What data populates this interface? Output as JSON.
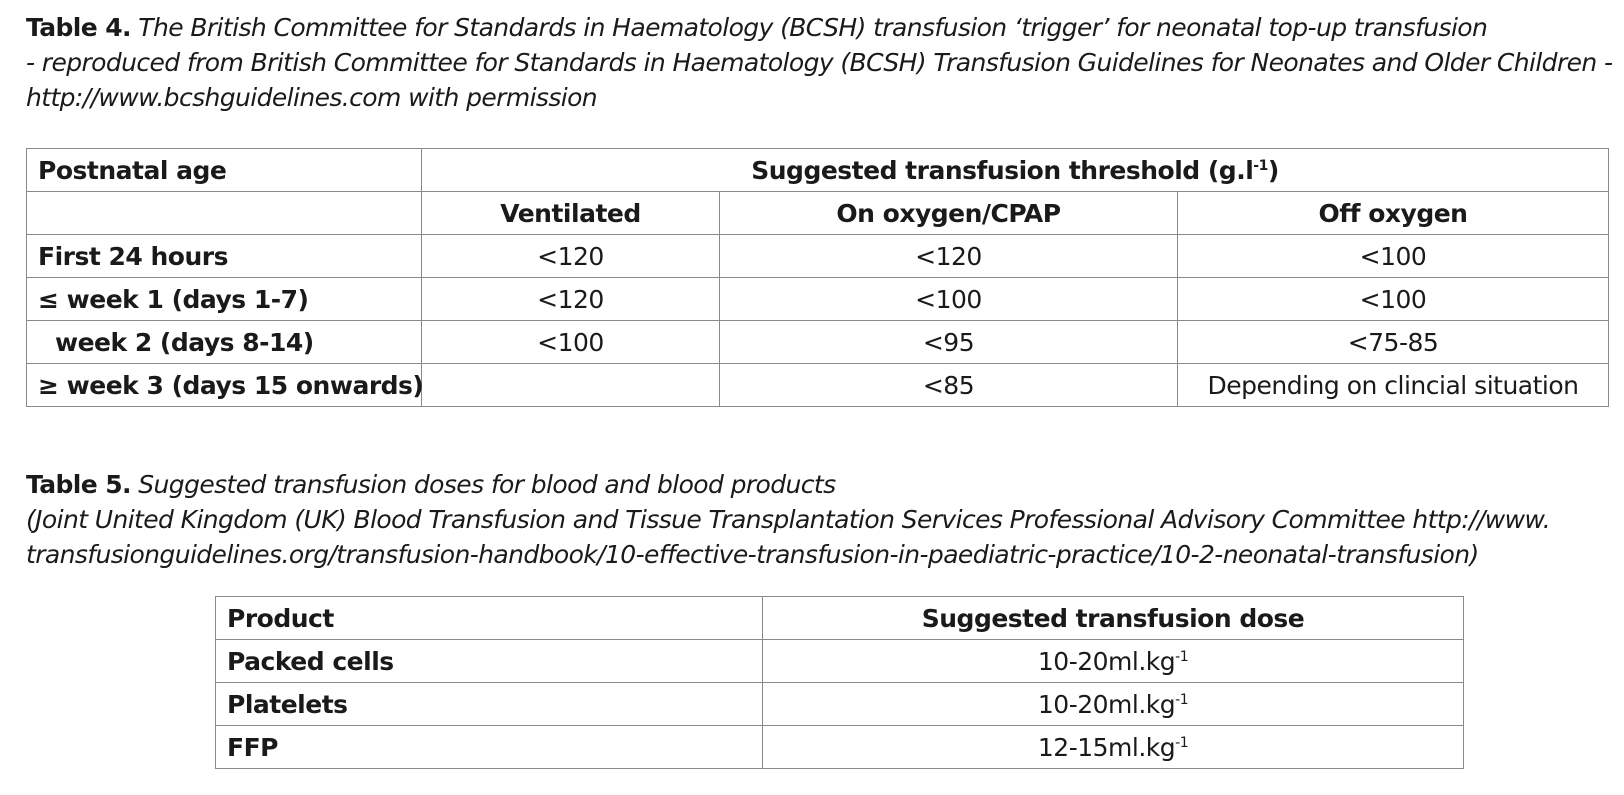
{
  "table4": {
    "caption_label": "Table 4.",
    "caption_lines": [
      "The British Committee for Standards in Haematology (BCSH) transfusion ‘trigger’ for neonatal top-up transfusion",
      "- reproduced from British Committee for Standards in Haematology (BCSH) Transfusion Guidelines for Neonates and Older Children -",
      "http://www.bcshguidelines.com with permission"
    ],
    "header_age": "Postnatal age",
    "header_threshold": "Suggested transfusion threshold (g.l",
    "header_threshold_sup": "-1",
    "header_threshold_close": ")",
    "columns": [
      "Ventilated",
      "On oxygen/CPAP",
      "Off oxygen"
    ],
    "rows": [
      {
        "age": "First 24 hours",
        "values": [
          "<120",
          "<120",
          "<100"
        ]
      },
      {
        "age": "≤ week 1 (days 1-7)",
        "values": [
          "<120",
          "<100",
          "<100"
        ]
      },
      {
        "age": "week 2 (days 8-14)",
        "values": [
          "<100",
          "<95",
          "<75-85"
        ]
      },
      {
        "age": "≥ week 3 (days 15 onwards)",
        "values": [
          "",
          "<85",
          "Depending on clincial situation"
        ]
      }
    ]
  },
  "table5": {
    "caption_label": "Table 5.",
    "caption_lines": [
      "Suggested transfusion doses for blood and blood products",
      "(Joint United Kingdom (UK) Blood Transfusion and Tissue Transplantation Services Professional Advisory Committee http://www.",
      "transfusionguidelines.org/transfusion-handbook/10-effective-transfusion-in-paediatric-practice/10-2-neonatal-transfusion)"
    ],
    "header_product": "Product",
    "header_dose": "Suggested transfusion dose",
    "unit_sup": "-1",
    "rows": [
      {
        "product": "Packed cells",
        "dose": "10-20ml.kg"
      },
      {
        "product": "Platelets",
        "dose": "10-20ml.kg"
      },
      {
        "product": "FFP",
        "dose": "12-15ml.kg"
      }
    ]
  }
}
